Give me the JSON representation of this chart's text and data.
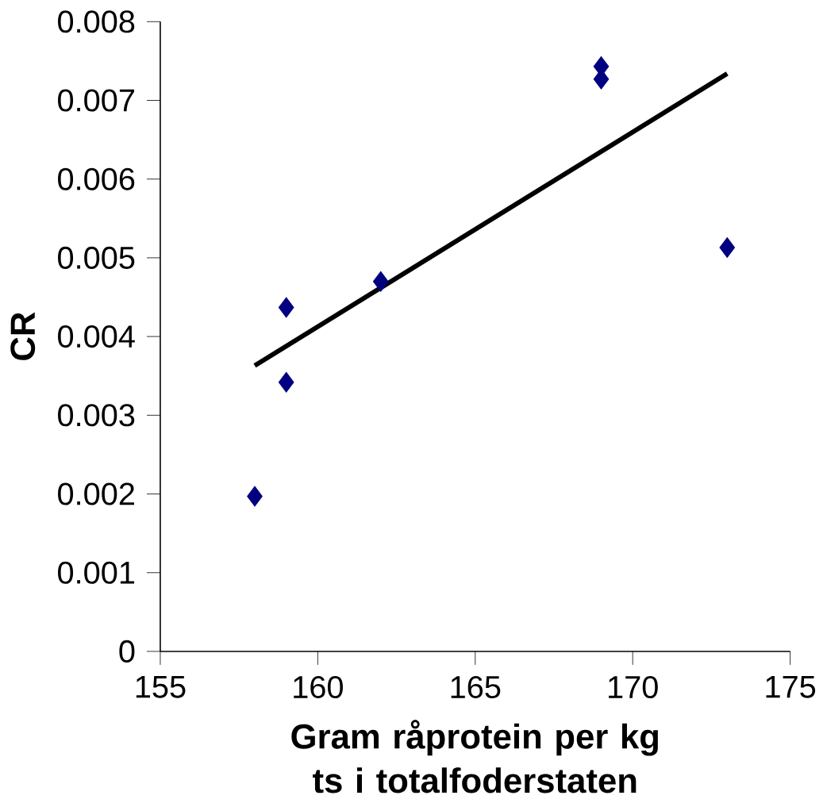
{
  "chart_data": {
    "type": "scatter",
    "xlabel": "Gram råprotein per kg ts i totalfoderstaten",
    "ylabel": "CR",
    "xlim": [
      155,
      175
    ],
    "xticks": [
      155,
      160,
      165,
      170,
      175
    ],
    "ylim": [
      0,
      0.008
    ],
    "yticks": [
      0,
      0.001,
      0.002,
      0.003,
      0.004,
      0.005,
      0.006,
      0.007,
      0.008
    ],
    "marker": "diamond",
    "grid": false,
    "series": [
      {
        "color": "#000080",
        "x": [
          158,
          159,
          159,
          162,
          169,
          169,
          173
        ],
        "values": [
          0.00197,
          0.00342,
          0.00437,
          0.0047,
          0.00743,
          0.00727,
          0.00513
        ]
      },
      {
        "type": "line",
        "marker": "none",
        "color": "#000000",
        "x": [
          158,
          173
        ],
        "values": [
          0.00363,
          0.00734
        ]
      }
    ]
  }
}
